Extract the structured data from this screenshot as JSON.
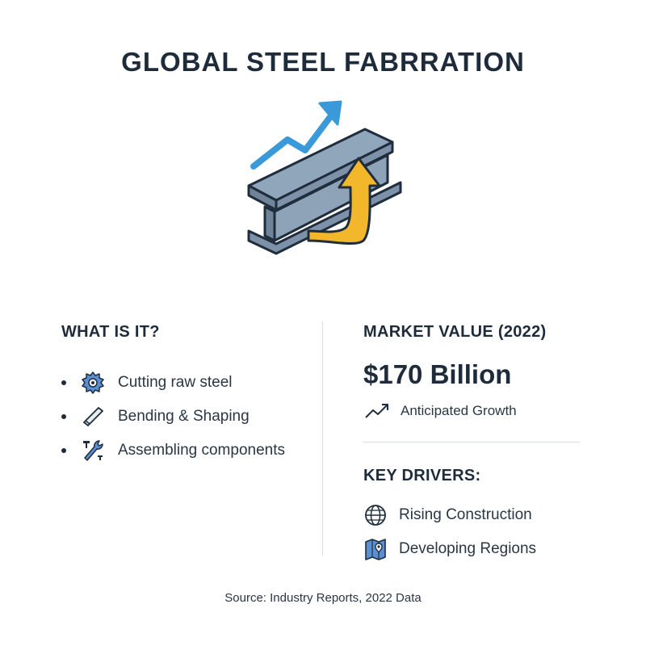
{
  "title": "GLOBAL STEEL FABRRATION",
  "what_is_it": {
    "heading": "WHAT IS IT?",
    "items": [
      {
        "icon": "saw-blade-icon",
        "label": "Cutting raw steel"
      },
      {
        "icon": "steel-bar-icon",
        "label": "Bending & Shaping"
      },
      {
        "icon": "wrench-bolt-icon",
        "label": "Assembling components"
      }
    ]
  },
  "market": {
    "heading": "MARKET VALUE (2022)",
    "value": "$170 Billion",
    "growth_icon": "trend-up-icon",
    "growth_label": "Anticipated Growth"
  },
  "drivers": {
    "heading": "KEY DRIVERS:",
    "items": [
      {
        "icon": "globe-icon",
        "label": "Rising Construction"
      },
      {
        "icon": "map-pin-icon",
        "label": "Developing Regions"
      }
    ]
  },
  "source": "Source: Industry Reports, 2022 Data",
  "colors": {
    "heading": "#1e2b3b",
    "accent_blue": "#3a9ad9",
    "accent_yellow": "#f3b72c",
    "steel": "#7d92a8"
  }
}
